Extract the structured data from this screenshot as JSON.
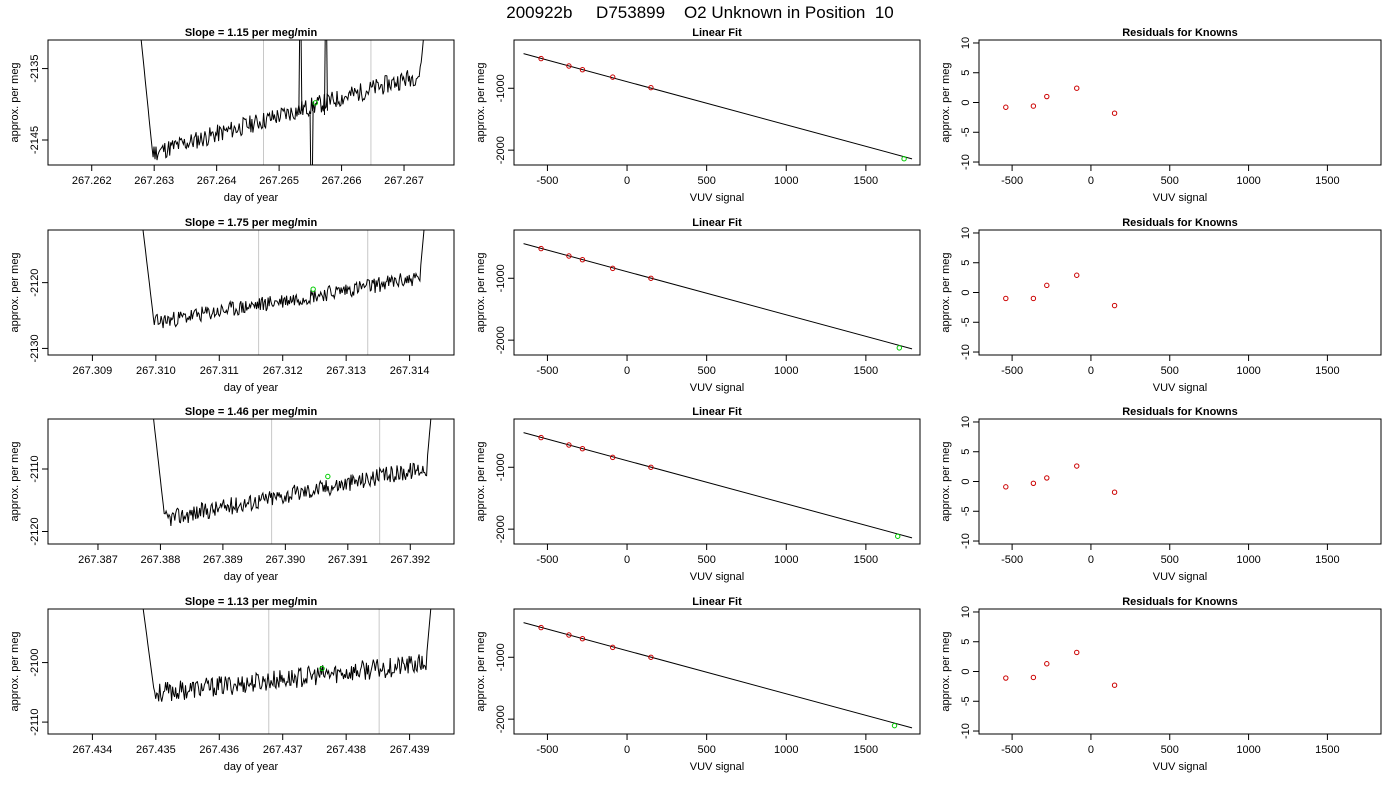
{
  "header": {
    "title": "200922b     D753899    O2 Unknown in Position  10"
  },
  "colors": {
    "trace": "#000000",
    "marker_unknown": "#00cc00",
    "marker_known": "#cc0000",
    "window": "#c8c8c8",
    "fit": "#000000"
  },
  "chart_data": [
    {
      "type": "line",
      "row": 1,
      "title": "Slope =  1.15  per meg/min",
      "xlabel": "day of year",
      "ylabel": "approx. per meg",
      "xlim": [
        267.2613,
        267.2678
      ],
      "ylim": [
        -2148.5,
        -2131
      ],
      "xticks": [
        267.262,
        267.263,
        267.264,
        267.265,
        267.266,
        267.267
      ],
      "xtick_labels": [
        "267.262",
        "267.263",
        "267.264",
        "267.265",
        "267.266",
        "267.267"
      ],
      "yticks": [
        -2135,
        -2145
      ],
      "ytick_labels": [
        "-2135",
        "-2145"
      ],
      "trace": {
        "x_start": 267.2627,
        "x_end": 267.2674,
        "start_level": -2147.5,
        "end_level": -2135.5,
        "seed": 11,
        "noise": 1.3
      },
      "vlines": [
        267.26475,
        267.26647
      ],
      "unknown_point": {
        "x": 267.26558,
        "y": -2139.8
      },
      "spikes": [
        {
          "x": 267.26534,
          "y": -2120
        },
        {
          "x": 267.26552,
          "y": -2160
        },
        {
          "x": 267.26575,
          "y": -2120
        }
      ]
    },
    {
      "type": "scatter",
      "row": 1,
      "title": "Linear Fit",
      "xlabel": "VUV signal",
      "ylabel": "approx. per meg",
      "xlim": [
        -710,
        1840
      ],
      "ylim": [
        -2240,
        -220
      ],
      "xticks": [
        -500,
        0,
        500,
        1000,
        1500
      ],
      "xtick_labels": [
        "-500",
        "0",
        "500",
        "1000",
        "1500"
      ],
      "yticks": [
        -1000,
        -2000
      ],
      "ytick_labels": [
        "-1000",
        "-2000"
      ],
      "fit_line": {
        "x": [
          -650,
          1790
        ],
        "y": [
          -440,
          -2141
        ]
      },
      "knowns": {
        "x": [
          -540,
          -365,
          -280,
          -90,
          150
        ],
        "y": [
          -520,
          -640,
          -700,
          -820,
          -990
        ]
      },
      "unknown": {
        "x": 1740,
        "y": -2138
      }
    },
    {
      "type": "scatter",
      "row": 1,
      "title": "Residuals for Knowns",
      "xlabel": "VUV signal",
      "ylabel": "approx. per meg",
      "xlim": [
        -710,
        1840
      ],
      "ylim": [
        -10.5,
        10.5
      ],
      "xticks": [
        -500,
        0,
        500,
        1000,
        1500
      ],
      "xtick_labels": [
        "-500",
        "0",
        "500",
        "1000",
        "1500"
      ],
      "yticks": [
        -10,
        -5,
        0,
        5,
        10
      ],
      "ytick_labels": [
        "-10",
        "-5",
        "0",
        "5",
        "10"
      ],
      "knowns": {
        "x": [
          -540,
          -365,
          -280,
          -90,
          150
        ],
        "y": [
          -0.8,
          -0.6,
          1.0,
          2.4,
          -1.8
        ]
      }
    },
    {
      "type": "line",
      "row": 2,
      "title": "Slope =  1.75  per meg/min",
      "xlabel": "day of year",
      "ylabel": "approx. per meg",
      "xlim": [
        267.3083,
        267.3147
      ],
      "ylim": [
        -2131,
        -2112
      ],
      "xticks": [
        267.309,
        267.31,
        267.311,
        267.312,
        267.313,
        267.314
      ],
      "xtick_labels": [
        "267.309",
        "267.310",
        "267.311",
        "267.312",
        "267.313",
        "267.314"
      ],
      "yticks": [
        -2120,
        -2130
      ],
      "ytick_labels": [
        "-2120",
        "-2130"
      ],
      "trace": {
        "x_start": 267.3097,
        "x_end": 267.3143,
        "start_level": -2126.5,
        "end_level": -2119.0,
        "seed": 23,
        "noise": 1.2
      },
      "vlines": [
        267.31162,
        267.31334
      ],
      "unknown_point": {
        "x": 267.31248,
        "y": -2121.0
      },
      "spikes": []
    },
    {
      "type": "scatter",
      "row": 2,
      "title": "Linear Fit",
      "xlabel": "VUV signal",
      "ylabel": "approx. per meg",
      "xlim": [
        -710,
        1840
      ],
      "ylim": [
        -2240,
        -220
      ],
      "xticks": [
        -500,
        0,
        500,
        1000,
        1500
      ],
      "xtick_labels": [
        "-500",
        "0",
        "500",
        "1000",
        "1500"
      ],
      "yticks": [
        -1000,
        -2000
      ],
      "ytick_labels": [
        "-1000",
        "-2000"
      ],
      "fit_line": {
        "x": [
          -650,
          1790
        ],
        "y": [
          -440,
          -2141
        ]
      },
      "knowns": {
        "x": [
          -540,
          -365,
          -280,
          -90,
          150
        ],
        "y": [
          -520,
          -640,
          -700,
          -840,
          -1000
        ]
      },
      "unknown": {
        "x": 1710,
        "y": -2125
      }
    },
    {
      "type": "scatter",
      "row": 2,
      "title": "Residuals for Knowns",
      "xlabel": "VUV signal",
      "ylabel": "approx. per meg",
      "xlim": [
        -710,
        1840
      ],
      "ylim": [
        -10.5,
        10.5
      ],
      "xticks": [
        -500,
        0,
        500,
        1000,
        1500
      ],
      "xtick_labels": [
        "-500",
        "0",
        "500",
        "1000",
        "1500"
      ],
      "yticks": [
        -10,
        -5,
        0,
        5,
        10
      ],
      "ytick_labels": [
        "-10",
        "-5",
        "0",
        "5",
        "10"
      ],
      "knowns": {
        "x": [
          -540,
          -365,
          -280,
          -90,
          150
        ],
        "y": [
          -1.0,
          -1.0,
          1.2,
          2.9,
          -2.2
        ]
      }
    },
    {
      "type": "line",
      "row": 3,
      "title": "Slope =  1.46  per meg/min",
      "xlabel": "day of year",
      "ylabel": "approx. per meg",
      "xlim": [
        267.3862,
        267.3927
      ],
      "ylim": [
        -2122,
        -2102
      ],
      "xticks": [
        267.387,
        267.388,
        267.389,
        267.39,
        267.391,
        267.392
      ],
      "xtick_labels": [
        "267.387",
        "267.388",
        "267.389",
        "267.390",
        "267.391",
        "267.392"
      ],
      "yticks": [
        -2110,
        -2120
      ],
      "ytick_labels": [
        "-2110",
        "-2120"
      ],
      "trace": {
        "x_start": 267.3878,
        "x_end": 267.3924,
        "start_level": -2118.5,
        "end_level": -2109.5,
        "seed": 37,
        "noise": 1.4
      },
      "vlines": [
        267.38978,
        267.39151
      ],
      "unknown_point": {
        "x": 267.39068,
        "y": -2111.2
      },
      "spikes": []
    },
    {
      "type": "scatter",
      "row": 3,
      "title": "Linear Fit",
      "xlabel": "VUV signal",
      "ylabel": "approx. per meg",
      "xlim": [
        -710,
        1840
      ],
      "ylim": [
        -2240,
        -220
      ],
      "xticks": [
        -500,
        0,
        500,
        1000,
        1500
      ],
      "xtick_labels": [
        "-500",
        "0",
        "500",
        "1000",
        "1500"
      ],
      "yticks": [
        -1000,
        -2000
      ],
      "ytick_labels": [
        "-1000",
        "-2000"
      ],
      "fit_line": {
        "x": [
          -650,
          1790
        ],
        "y": [
          -440,
          -2141
        ]
      },
      "knowns": {
        "x": [
          -540,
          -365,
          -280,
          -90,
          150
        ],
        "y": [
          -520,
          -640,
          -700,
          -840,
          -1000
        ]
      },
      "unknown": {
        "x": 1700,
        "y": -2115
      }
    },
    {
      "type": "scatter",
      "row": 3,
      "title": "Residuals for Knowns",
      "xlabel": "VUV signal",
      "ylabel": "approx. per meg",
      "xlim": [
        -710,
        1840
      ],
      "ylim": [
        -10.5,
        10.5
      ],
      "xticks": [
        -500,
        0,
        500,
        1000,
        1500
      ],
      "xtick_labels": [
        "-500",
        "0",
        "500",
        "1000",
        "1500"
      ],
      "yticks": [
        -10,
        -5,
        0,
        5,
        10
      ],
      "ytick_labels": [
        "-10",
        "-5",
        "0",
        "5",
        "10"
      ],
      "knowns": {
        "x": [
          -540,
          -365,
          -280,
          -90,
          150
        ],
        "y": [
          -0.9,
          -0.3,
          0.6,
          2.6,
          -1.8
        ]
      }
    },
    {
      "type": "line",
      "row": 4,
      "title": "Slope =  1.13  per meg/min",
      "xlabel": "day of year",
      "ylabel": "approx. per meg",
      "xlim": [
        267.4333,
        267.4397
      ],
      "ylim": [
        -2112,
        -2091
      ],
      "xticks": [
        267.434,
        267.435,
        267.436,
        267.437,
        267.438,
        267.439
      ],
      "xtick_labels": [
        "267.434",
        "267.435",
        "267.436",
        "267.437",
        "267.438",
        "267.439"
      ],
      "yticks": [
        -2100,
        -2110
      ],
      "ytick_labels": [
        "-2100",
        "-2110"
      ],
      "trace": {
        "x_start": 267.4347,
        "x_end": 267.4394,
        "start_level": -2105.5,
        "end_level": -2100.0,
        "seed": 53,
        "noise": 1.7
      },
      "vlines": [
        267.43678,
        267.43852
      ],
      "unknown_point": {
        "x": 267.43762,
        "y": -2101.0
      },
      "spikes": []
    },
    {
      "type": "scatter",
      "row": 4,
      "title": "Linear Fit",
      "xlabel": "VUV signal",
      "ylabel": "approx. per meg",
      "xlim": [
        -710,
        1840
      ],
      "ylim": [
        -2240,
        -220
      ],
      "xticks": [
        -500,
        0,
        500,
        1000,
        1500
      ],
      "xtick_labels": [
        "-500",
        "0",
        "500",
        "1000",
        "1500"
      ],
      "yticks": [
        -1000,
        -2000
      ],
      "ytick_labels": [
        "-1000",
        "-2000"
      ],
      "fit_line": {
        "x": [
          -650,
          1790
        ],
        "y": [
          -440,
          -2141
        ]
      },
      "knowns": {
        "x": [
          -540,
          -365,
          -280,
          -90,
          150
        ],
        "y": [
          -520,
          -640,
          -700,
          -840,
          -1000
        ]
      },
      "unknown": {
        "x": 1680,
        "y": -2105
      }
    },
    {
      "type": "scatter",
      "row": 4,
      "title": "Residuals for Knowns",
      "xlabel": "VUV signal",
      "ylabel": "approx. per meg",
      "xlim": [
        -710,
        1840
      ],
      "ylim": [
        -10.5,
        10.5
      ],
      "xticks": [
        -500,
        0,
        500,
        1000,
        1500
      ],
      "xtick_labels": [
        "-500",
        "0",
        "500",
        "1000",
        "1500"
      ],
      "yticks": [
        -10,
        -5,
        0,
        5,
        10
      ],
      "ytick_labels": [
        "-10",
        "-5",
        "0",
        "5",
        "10"
      ],
      "knowns": {
        "x": [
          -540,
          -365,
          -280,
          -90,
          150
        ],
        "y": [
          -1.1,
          -1.0,
          1.3,
          3.2,
          -2.3
        ]
      }
    }
  ]
}
